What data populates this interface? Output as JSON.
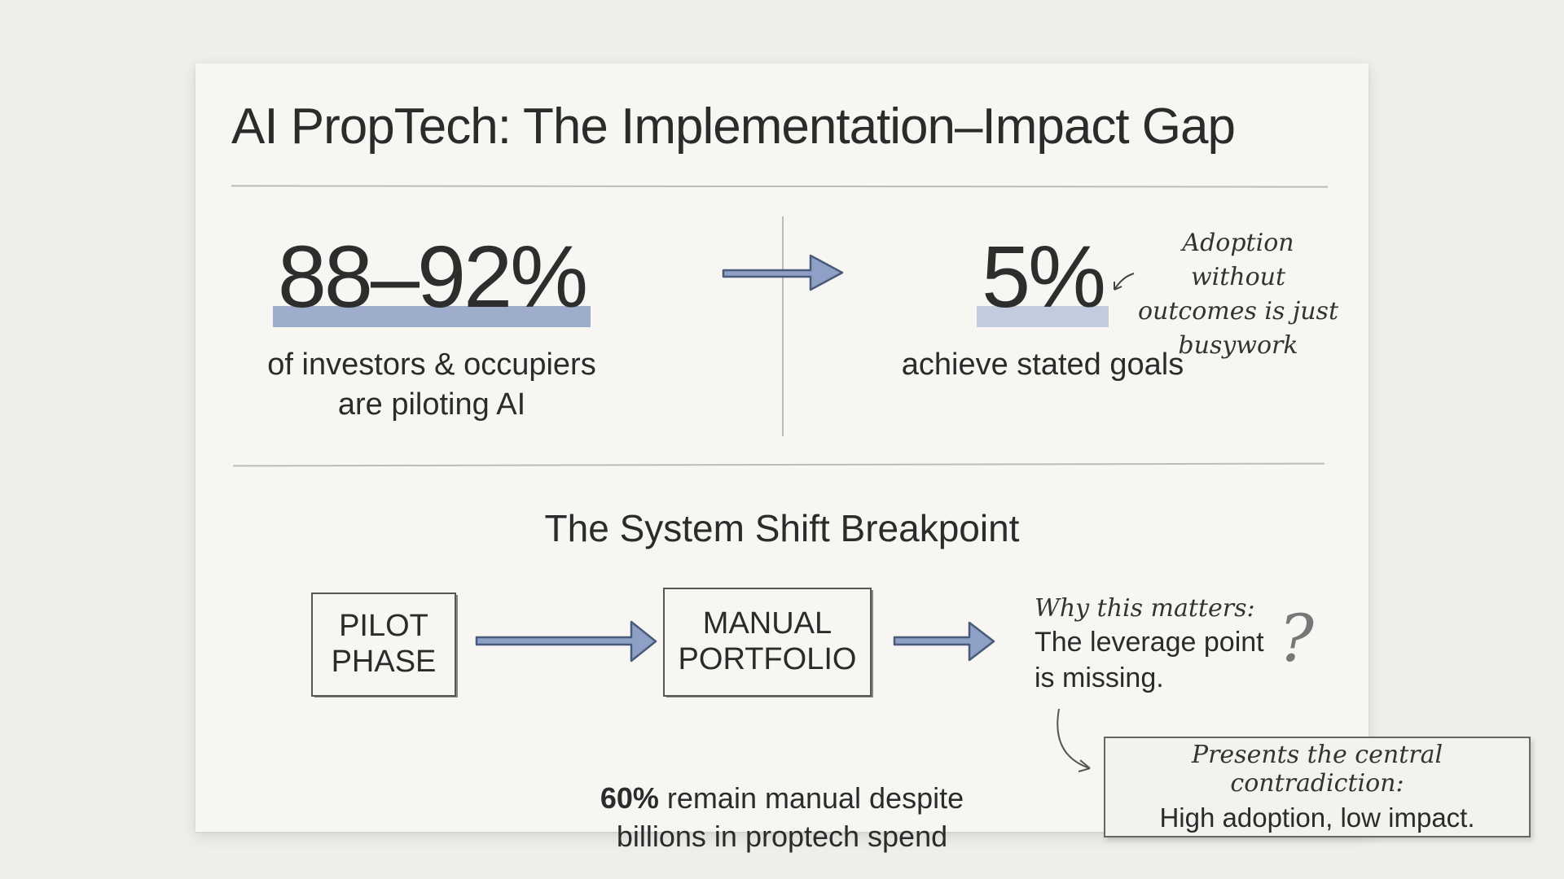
{
  "title": "AI PropTech: The Implementation–Impact Gap",
  "stats": {
    "left": {
      "value": "88–92%",
      "caption_line1": "of investors & occupiers",
      "caption_line2": "are piloting AI"
    },
    "right": {
      "value": "5%",
      "caption": "achieve stated goals"
    }
  },
  "annotation_top": {
    "line1": "Adoption without",
    "line2": "outcomes is just",
    "line3": "busywork"
  },
  "section_title": "The System Shift Breakpoint",
  "flow": {
    "box1_line1": "PILOT",
    "box1_line2": "PHASE",
    "box2_line1": "MANUAL",
    "box2_line2": "PORTFOLIO"
  },
  "why": {
    "heading": "Why this matters:",
    "line1": "The leverage point",
    "line2": "is missing.",
    "mark": "?"
  },
  "manual_note": {
    "pct": "60%",
    "line1_rest": " remain manual despite",
    "line2": "billions in proptech spend"
  },
  "note_box": {
    "line1": "Presents the central contradiction:",
    "line2": "High adoption, low impact."
  },
  "colors": {
    "arrow_fill": "#8ea0c6",
    "arrow_stroke": "#4a5a7a",
    "highlight": "#8ea0c6"
  }
}
